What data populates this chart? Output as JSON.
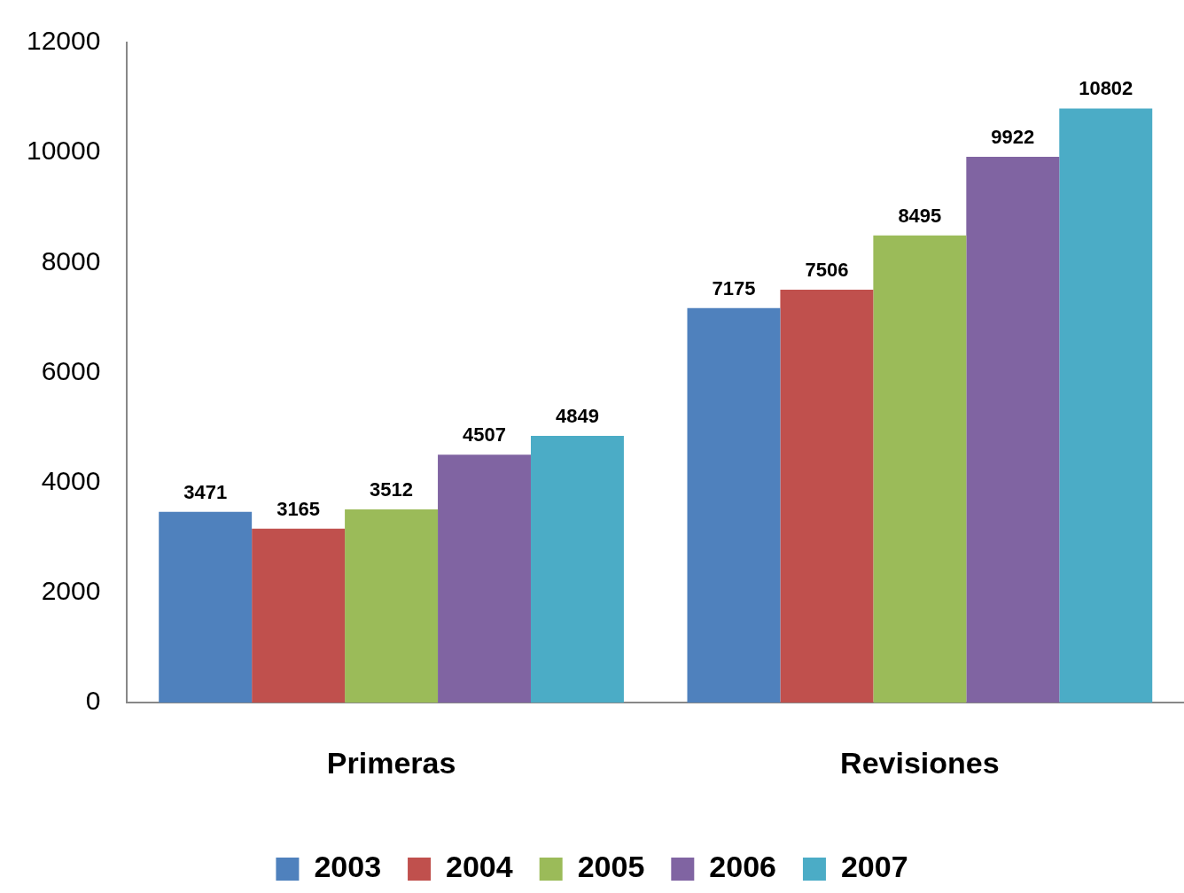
{
  "chart_data": {
    "type": "bar",
    "categories": [
      "Primeras",
      "Revisiones"
    ],
    "series": [
      {
        "name": "2003",
        "color": "#4f81bd",
        "values": [
          3471,
          7175
        ]
      },
      {
        "name": "2004",
        "color": "#c0504d",
        "values": [
          3165,
          7506
        ]
      },
      {
        "name": "2005",
        "color": "#9bbb59",
        "values": [
          3512,
          8495
        ]
      },
      {
        "name": "2006",
        "color": "#8064a2",
        "values": [
          4507,
          9922
        ]
      },
      {
        "name": "2007",
        "color": "#4bacc6",
        "values": [
          4849,
          10802
        ]
      }
    ],
    "ylim": [
      0,
      12000
    ],
    "yticks": [
      0,
      2000,
      4000,
      6000,
      8000,
      10000,
      12000
    ],
    "grid": false,
    "legend": "bottom",
    "data_labels": true
  }
}
